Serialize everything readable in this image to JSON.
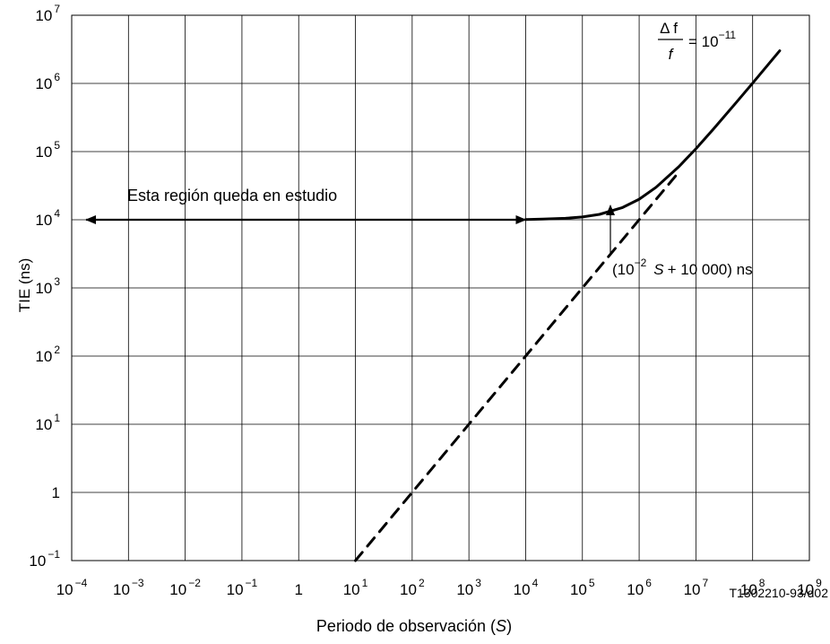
{
  "chart_data": {
    "type": "line",
    "xlabel_text": "Periodo de observación (",
    "xlabel_italic": "S",
    "xlabel_close": ")",
    "ylabel": "TIE (ns)",
    "xscale": "log",
    "yscale": "log",
    "xlim": [
      0.0001,
      1000000000
    ],
    "ylim": [
      0.1,
      10000000
    ],
    "grid": true,
    "x_ticks": [
      {
        "base": "10",
        "exp": "−4"
      },
      {
        "base": "10",
        "exp": "−3"
      },
      {
        "base": "10",
        "exp": "−2"
      },
      {
        "base": "10",
        "exp": "−1"
      },
      {
        "base": "1",
        "exp": ""
      },
      {
        "base": "10",
        "exp": "1"
      },
      {
        "base": "10",
        "exp": "2"
      },
      {
        "base": "10",
        "exp": "3"
      },
      {
        "base": "10",
        "exp": "4"
      },
      {
        "base": "10",
        "exp": "5"
      },
      {
        "base": "10",
        "exp": "6"
      },
      {
        "base": "10",
        "exp": "7"
      },
      {
        "base": "10",
        "exp": "8"
      },
      {
        "base": "10",
        "exp": "9"
      }
    ],
    "y_ticks": [
      {
        "base": "10",
        "exp": "−1"
      },
      {
        "base": "1",
        "exp": ""
      },
      {
        "base": "10",
        "exp": "1"
      },
      {
        "base": "10",
        "exp": "2"
      },
      {
        "base": "10",
        "exp": "3"
      },
      {
        "base": "10",
        "exp": "4"
      },
      {
        "base": "10",
        "exp": "5"
      },
      {
        "base": "10",
        "exp": "6"
      },
      {
        "base": "10",
        "exp": "7"
      }
    ],
    "series": [
      {
        "style": "solid",
        "x": [
          10000,
          20000,
          50000,
          100000,
          200000,
          500000,
          1000000,
          2000000,
          5000000,
          10000000,
          20000000,
          50000000,
          100000000,
          300000000
        ],
        "y": [
          10100,
          10200,
          10500,
          11000,
          12000,
          15000,
          20000,
          30000,
          60000,
          110000,
          210000,
          510000,
          1010000,
          3010000
        ]
      },
      {
        "style": "dashed",
        "x": [
          10,
          5000000
        ],
        "y": [
          0.1,
          50000
        ]
      }
    ],
    "region_arrow": {
      "x_from": 0.0001,
      "x_to": 10000,
      "y": 10000
    },
    "annotations": {
      "region_text": "Esta región queda en estudio",
      "formula_open": "(10",
      "formula_exp": "−2",
      "formula_var": "S",
      "formula_rest": "+ 10 000)  ns",
      "ratio_num": "Δ f",
      "ratio_den": "f",
      "ratio_eq": "= 10",
      "ratio_exp": "−11",
      "figure_id": "T1302210-93/d02"
    }
  }
}
